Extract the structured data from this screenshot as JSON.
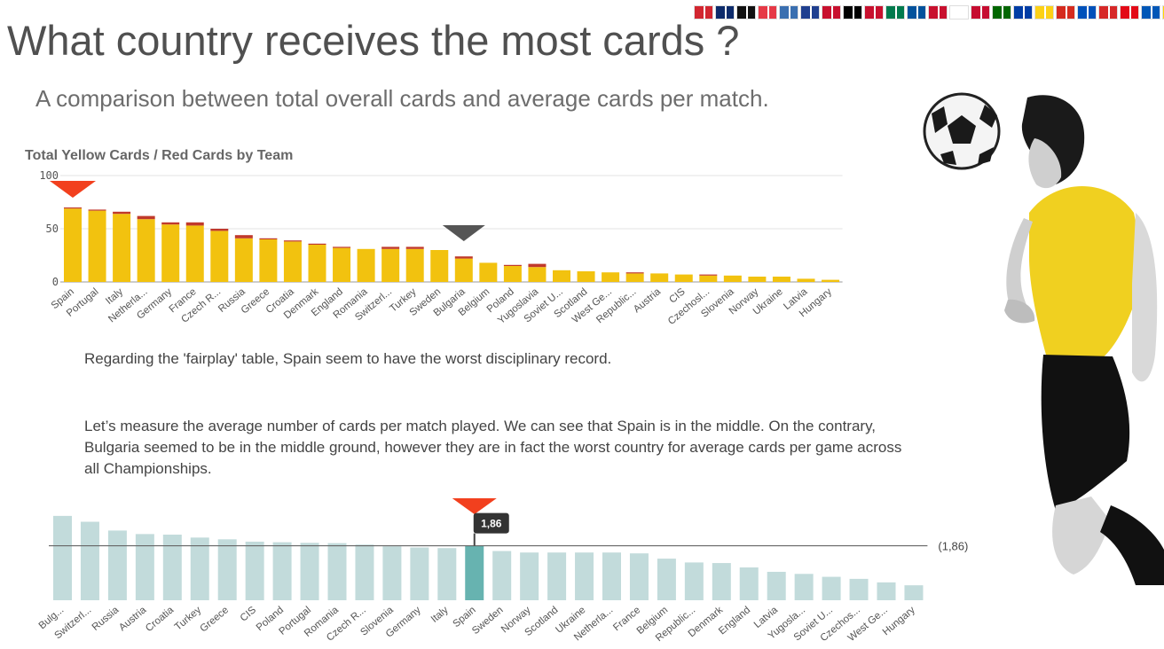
{
  "header": {
    "title": "What country receives the most cards ?",
    "subtitle": "A comparison between total overall cards and average cards per match.",
    "flags": [
      "#d22630",
      "#0d2b6b",
      "#111111",
      "#e63946",
      "#3a6fb0",
      "#1f3f8f",
      "#c8102e",
      "#000000",
      "#c8102e",
      "#007a4d",
      "#02529c",
      "#c8102e",
      "#ffffff",
      "#c60c30",
      "#006600",
      "#003da5",
      "#fcd116",
      "#d52b1e",
      "#0051ba",
      "#d62828",
      "#e30a17",
      "#0057b7",
      "#ffd700",
      "#e30a17"
    ]
  },
  "chart_data": [
    {
      "type": "bar",
      "title": "Total Yellow Cards / Red Cards by Team",
      "categories": [
        "Spain",
        "Portugal",
        "Italy",
        "Netherla...",
        "Germany",
        "France",
        "Czech R...",
        "Russia",
        "Greece",
        "Croatia",
        "Denmark",
        "England",
        "Romania",
        "Switzerl...",
        "Turkey",
        "Sweden",
        "Bulgaria",
        "Belgium",
        "Poland",
        "Yugoslavia",
        "Soviet U...",
        "Scotland",
        "West Ge...",
        "Republic...",
        "Austria",
        "CIS",
        "Czechosl...",
        "Slovenia",
        "Norway",
        "Ukraine",
        "Latvia",
        "Hungary"
      ],
      "series": [
        {
          "name": "Yellow Cards",
          "color": "#f2c20f",
          "values": [
            69,
            67,
            64,
            59,
            54,
            53,
            48,
            41,
            40,
            38,
            35,
            32,
            31,
            31,
            31,
            30,
            22,
            18,
            15,
            14,
            11,
            10,
            9,
            8,
            8,
            7,
            6,
            6,
            5,
            5,
            3,
            2
          ]
        },
        {
          "name": "Red Cards",
          "color": "#c0392b",
          "values": [
            1,
            1,
            2,
            3,
            2,
            3,
            2,
            3,
            1,
            1,
            1,
            1,
            0,
            2,
            2,
            0,
            2,
            0,
            1,
            3,
            0,
            0,
            0,
            1,
            0,
            0,
            1,
            0,
            0,
            0,
            0,
            0
          ]
        }
      ],
      "y_ticks": [
        "100",
        "50",
        "0"
      ],
      "ylim": [
        0,
        100
      ],
      "highlight_worst": "Spain",
      "highlight_other": "Bulgaria"
    },
    {
      "type": "bar",
      "title": "Average cards per match",
      "categories": [
        "Bulg...",
        "Switzerl...",
        "Russia",
        "Austria",
        "Croatia",
        "Turkey",
        "Greece",
        "CIS",
        "Poland",
        "Portugal",
        "Romania",
        "Czech R...",
        "Slovenia",
        "Germany",
        "Italy",
        "Spain",
        "Sweden",
        "Norway",
        "Scotland",
        "Ukraine",
        "Netherla...",
        "France",
        "Belgium",
        "Republic...",
        "Denmark",
        "England",
        "Latvia",
        "Yugosla...",
        "Soviet U...",
        "Czechos...",
        "West Ge...",
        "Hungary"
      ],
      "values": [
        2.88,
        2.68,
        2.38,
        2.26,
        2.24,
        2.14,
        2.08,
        2.0,
        1.98,
        1.96,
        1.95,
        1.9,
        1.84,
        1.8,
        1.78,
        1.86,
        1.68,
        1.63,
        1.63,
        1.63,
        1.63,
        1.6,
        1.42,
        1.29,
        1.27,
        1.12,
        0.97,
        0.9,
        0.8,
        0.73,
        0.61,
        0.51
      ],
      "color": "#c2dbdb",
      "selected_color": "#67b3b0",
      "selected": "Spain",
      "reference_value": 1.86,
      "reference_label": "(1,86)",
      "tooltip": "1,86",
      "ylim": [
        0,
        3.3
      ],
      "highlight_worst": "Bulgaria",
      "highlight_other": "Spain"
    }
  ],
  "text": {
    "para1": "Regarding the 'fairplay' table, Spain seem to have the worst disciplinary record.",
    "para2": "Let’s measure the average number of cards per match played. We can see that Spain is in the middle. On the contrary, Bulgaria seemed to be in the middle ground, however they are in fact the worst country for average cards per game across all Championships."
  },
  "colors": {
    "marker_red": "#f2401e",
    "marker_dark": "#555555",
    "player_shirt": "#f0d020"
  }
}
